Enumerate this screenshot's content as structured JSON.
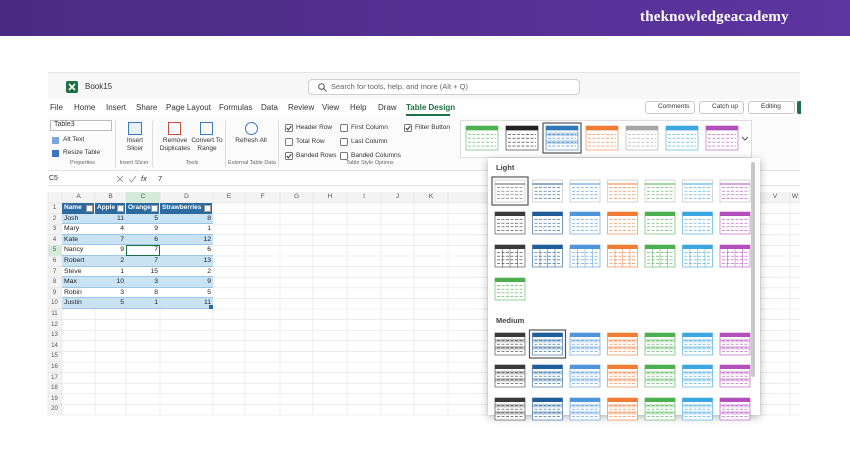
{
  "brand": "theknowledgeacademy",
  "window": {
    "file_name": "Book15",
    "search_placeholder": "Search for tools, help, and more (Alt + Q)"
  },
  "tabs": [
    "File",
    "Home",
    "Insert",
    "Share",
    "Page Layout",
    "Formulas",
    "Data",
    "Review",
    "View",
    "Help",
    "Draw",
    "Table Design"
  ],
  "actions": [
    "Comments",
    "Catch up",
    "Editing"
  ],
  "ribbon": {
    "table_name": "Table3",
    "properties": {
      "items": [
        "Alt Text",
        "Resize Table"
      ],
      "label": "Properties"
    },
    "insert_slicer": {
      "button": "Insert Slicer",
      "label": "Insert Slicer"
    },
    "tools": {
      "buttons": [
        "Remove Duplicates",
        "Convert To Range"
      ],
      "label": "Tools"
    },
    "external": {
      "button": "Refresh All",
      "label": "External Table Data"
    },
    "style_options": {
      "label": "Table Style Options",
      "options": [
        {
          "text": "Header Row",
          "checked": true
        },
        {
          "text": "Total Row",
          "checked": false
        },
        {
          "text": "Banded Rows",
          "checked": true
        },
        {
          "text": "First Column",
          "checked": false
        },
        {
          "text": "Last Column",
          "checked": false
        },
        {
          "text": "Banded Columns",
          "checked": false
        },
        {
          "text": "Filter Button",
          "checked": true
        }
      ]
    }
  },
  "formula_bar": {
    "cell": "C5",
    "function_icon": "fx",
    "content": "7"
  },
  "sheet": {
    "column_letters": [
      "A",
      "B",
      "C",
      "D",
      "E",
      "F",
      "G",
      "H",
      "I",
      "J",
      "K"
    ],
    "far_column_letters": [
      "V",
      "W"
    ],
    "row_numbers": [
      1,
      2,
      3,
      4,
      5,
      6,
      7,
      8,
      9,
      10,
      11,
      12,
      13,
      14,
      15,
      16,
      17,
      18,
      19,
      20
    ],
    "table": {
      "header": [
        "Name",
        "Apple",
        "Orange",
        "Strawberries"
      ],
      "rows": [
        [
          "Josh",
          11,
          5,
          8
        ],
        [
          "Mary",
          4,
          9,
          1
        ],
        [
          "Kate",
          7,
          6,
          12
        ],
        [
          "Nancy",
          9,
          7,
          6
        ],
        [
          "Robert",
          2,
          7,
          13
        ],
        [
          "Steve",
          1,
          15,
          2
        ],
        [
          "Max",
          10,
          3,
          9
        ],
        [
          "Robin",
          3,
          8,
          5
        ],
        [
          "Justin",
          5,
          1,
          11
        ]
      ]
    }
  },
  "gallery": {
    "sections": [
      "Light",
      "Medium"
    ]
  }
}
